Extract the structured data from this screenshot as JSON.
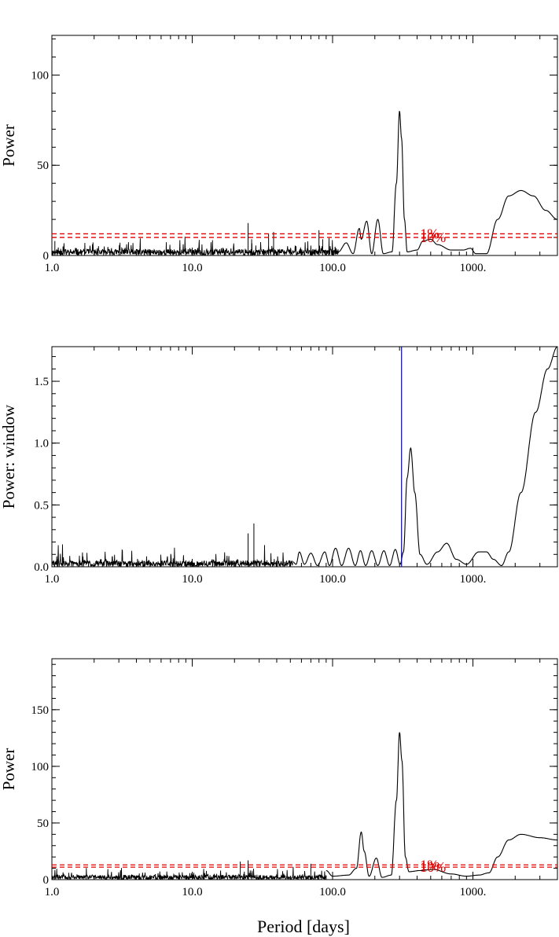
{
  "figure": {
    "shared_xlabel": "Period [days]"
  },
  "chart_data": [
    {
      "type": "line",
      "panel": "top",
      "xscale": "log",
      "xlim": [
        1.0,
        4000
      ],
      "ylim": [
        0,
        122
      ],
      "xticks": [
        1,
        10,
        100,
        1000
      ],
      "xtick_labels": [
        "1.0",
        "10.0",
        "100.0",
        "1000."
      ],
      "yticks": [
        0,
        50,
        100
      ],
      "ytick_labels": [
        "0",
        "50",
        "100"
      ],
      "xlabel": "",
      "ylabel": "Power",
      "grid": false,
      "noise_floor": {
        "from": 1.0,
        "to": 110,
        "level": 3.5,
        "spike_max": 12,
        "seed": 11
      },
      "series": [
        {
          "color": "#000000",
          "points": [
            [
              1.0,
              22
            ],
            [
              1.05,
              8
            ],
            [
              1.2,
              5
            ],
            [
              25,
              18
            ],
            [
              26.5,
              9
            ],
            [
              35,
              12
            ],
            [
              38,
              13
            ],
            [
              80,
              14
            ],
            [
              85,
              9
            ],
            [
              100,
              4
            ],
            [
              110,
              2
            ],
            [
              125,
              7
            ],
            [
              140,
              1
            ],
            [
              155,
              15
            ],
            [
              160,
              9
            ],
            [
              175,
              19
            ],
            [
              190,
              1
            ],
            [
              210,
              20
            ],
            [
              230,
              1
            ],
            [
              265,
              2
            ],
            [
              285,
              40
            ],
            [
              300,
              80
            ],
            [
              310,
              65
            ],
            [
              325,
              20
            ],
            [
              340,
              2
            ],
            [
              400,
              3
            ],
            [
              440,
              8
            ],
            [
              500,
              9
            ],
            [
              560,
              6
            ],
            [
              700,
              3
            ],
            [
              850,
              3
            ],
            [
              960,
              4
            ],
            [
              1050,
              1
            ],
            [
              1250,
              1
            ],
            [
              1500,
              20
            ],
            [
              1800,
              33
            ],
            [
              2200,
              36
            ],
            [
              2700,
              33
            ],
            [
              3300,
              25
            ],
            [
              4000,
              20
            ]
          ]
        }
      ],
      "thresholds": [
        {
          "value": 12,
          "color": "#e00000",
          "style": "dashed"
        },
        {
          "value": 10,
          "color": "#e00000",
          "style": "dashed"
        }
      ],
      "annotations": [
        {
          "text": "1%",
          "x": 420,
          "y": 12,
          "color": "#e00000"
        },
        {
          "text": "10%",
          "x": 420,
          "y": 10,
          "color": "#e00000"
        }
      ]
    },
    {
      "type": "line",
      "panel": "middle",
      "xscale": "log",
      "xlim": [
        1.0,
        4000
      ],
      "ylim": [
        0,
        1.78
      ],
      "xticks": [
        1,
        10,
        100,
        1000
      ],
      "xtick_labels": [
        "1.0",
        "10.0",
        "100.0",
        "1000."
      ],
      "yticks": [
        0,
        0.5,
        1.0,
        1.5
      ],
      "ytick_labels": [
        "0.0",
        "0.5",
        "1.0",
        "1.5"
      ],
      "xlabel": "",
      "ylabel": "Power: window",
      "grid": false,
      "noise_floor": {
        "from": 1.0,
        "to": 52,
        "level": 0.05,
        "spike_max": 0.22,
        "seed": 29
      },
      "series": [
        {
          "color": "#000000",
          "points": [
            [
              1.0,
              0.2
            ],
            [
              1.1,
              0.06
            ],
            [
              25,
              0.27
            ],
            [
              27.5,
              0.35
            ],
            [
              29,
              0.06
            ],
            [
              52,
              0.04
            ],
            [
              55,
              0.02
            ],
            [
              58,
              0.12
            ],
            [
              63,
              0.02
            ],
            [
              70,
              0.11
            ],
            [
              78,
              0.01
            ],
            [
              88,
              0.12
            ],
            [
              95,
              0.01
            ],
            [
              105,
              0.15
            ],
            [
              116,
              0.01
            ],
            [
              130,
              0.15
            ],
            [
              145,
              0.01
            ],
            [
              158,
              0.13
            ],
            [
              172,
              0.01
            ],
            [
              190,
              0.13
            ],
            [
              210,
              0.01
            ],
            [
              232,
              0.13
            ],
            [
              255,
              0.01
            ],
            [
              280,
              0.14
            ],
            [
              303,
              0.02
            ],
            [
              320,
              0.12
            ],
            [
              340,
              0.72
            ],
            [
              360,
              0.96
            ],
            [
              385,
              0.6
            ],
            [
              420,
              0.1
            ],
            [
              470,
              0.02
            ],
            [
              560,
              0.12
            ],
            [
              650,
              0.19
            ],
            [
              760,
              0.06
            ],
            [
              900,
              0.02
            ],
            [
              1100,
              0.12
            ],
            [
              1250,
              0.12
            ],
            [
              1400,
              0.06
            ],
            [
              1600,
              0.01
            ],
            [
              1800,
              0.12
            ],
            [
              2200,
              0.6
            ],
            [
              2800,
              1.25
            ],
            [
              3400,
              1.6
            ],
            [
              4000,
              1.78
            ]
          ]
        }
      ],
      "vlines": [
        {
          "x": 310,
          "color": "#0000cc"
        }
      ]
    },
    {
      "type": "line",
      "panel": "bottom",
      "xscale": "log",
      "xlim": [
        1.0,
        4000
      ],
      "ylim": [
        0,
        195
      ],
      "xticks": [
        1,
        10,
        100,
        1000
      ],
      "xtick_labels": [
        "1.0",
        "10.0",
        "100.0",
        "1000."
      ],
      "yticks": [
        0,
        50,
        100,
        150
      ],
      "ytick_labels": [
        "0",
        "50",
        "100",
        "150"
      ],
      "xlabel": "Period [days]",
      "ylabel": "Power",
      "grid": false,
      "noise_floor": {
        "from": 1.0,
        "to": 90,
        "level": 4,
        "spike_max": 12,
        "seed": 47
      },
      "series": [
        {
          "color": "#000000",
          "points": [
            [
              1.0,
              18
            ],
            [
              1.05,
              6
            ],
            [
              22,
              16
            ],
            [
              23.5,
              7
            ],
            [
              25,
              17
            ],
            [
              26.5,
              6
            ],
            [
              70,
              14
            ],
            [
              75,
              4
            ],
            [
              90,
              8
            ],
            [
              100,
              3
            ],
            [
              130,
              4
            ],
            [
              148,
              10
            ],
            [
              160,
              42
            ],
            [
              168,
              25
            ],
            [
              182,
              3
            ],
            [
              205,
              19
            ],
            [
              225,
              2
            ],
            [
              262,
              4
            ],
            [
              285,
              70
            ],
            [
              300,
              130
            ],
            [
              312,
              105
            ],
            [
              330,
              20
            ],
            [
              350,
              7
            ],
            [
              420,
              8
            ],
            [
              520,
              9
            ],
            [
              700,
              5
            ],
            [
              900,
              3
            ],
            [
              1100,
              4
            ],
            [
              1300,
              6
            ],
            [
              1500,
              20
            ],
            [
              1800,
              35
            ],
            [
              2200,
              40
            ],
            [
              3000,
              37
            ],
            [
              4000,
              35
            ]
          ]
        }
      ],
      "thresholds": [
        {
          "value": 13,
          "color": "#e00000",
          "style": "dashed"
        },
        {
          "value": 11,
          "color": "#e00000",
          "style": "dashed"
        }
      ],
      "annotations": [
        {
          "text": "1%",
          "x": 420,
          "y": 13,
          "color": "#e00000"
        },
        {
          "text": "10%",
          "x": 420,
          "y": 11,
          "color": "#e00000"
        }
      ]
    }
  ]
}
